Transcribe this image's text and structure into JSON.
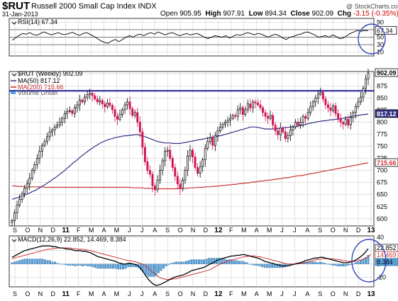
{
  "header": {
    "ticker": "$RUT",
    "full_name": "Russell 2000 Small Cap Index  INDX",
    "date": "31-Jan-2013",
    "open_label": "Open",
    "open": "905.95",
    "high_label": "High",
    "high": "907.91",
    "low_label": "Low",
    "low": "894.34",
    "close_label": "Close",
    "close": "902.09",
    "chg_label": "Chg",
    "chg": "-3.15 (-0.35%)",
    "brand": "@ StockCharts.com"
  },
  "colors": {
    "up": "#d01050",
    "down": "#000000",
    "ma50": "#333388",
    "ma200": "#cc3333",
    "resistance": "#1c1c9c",
    "histogram": "#5aa0d8",
    "macd": "#000000",
    "signal": "#cc3333",
    "ellipse": "#3344bb",
    "grid": "#cfcfcf"
  },
  "chart_data": [
    {
      "type": "line",
      "panel": "RSI",
      "legend": "RSI(14) 67.34",
      "last_label": "67.34",
      "ylim": [
        0,
        100
      ],
      "y_ticks": [
        10,
        30,
        50,
        70,
        90
      ],
      "reference_lines": [
        30,
        50,
        70
      ],
      "values": [
        42,
        48,
        55,
        60,
        58,
        62,
        57,
        55,
        60,
        64,
        60,
        56,
        59,
        62,
        58,
        57,
        60,
        63,
        58,
        55,
        60,
        62,
        57,
        52,
        46,
        40,
        36,
        34,
        40,
        44,
        38,
        44,
        50,
        54,
        50,
        56,
        58,
        54,
        59,
        62,
        58,
        64,
        60,
        56,
        60,
        62,
        58,
        54,
        57,
        60,
        56,
        58,
        60,
        55,
        50,
        46,
        50,
        54,
        52,
        50,
        54,
        48,
        52,
        57,
        55,
        58,
        62,
        60,
        56,
        60,
        58,
        54,
        50,
        55,
        58,
        54,
        48,
        44,
        50,
        52,
        56,
        58,
        62,
        64,
        60,
        56,
        50,
        52,
        54,
        50,
        56,
        52,
        46,
        48,
        54,
        60,
        64,
        68,
        66,
        68,
        67.34
      ]
    },
    {
      "type": "candlestick",
      "panel": "Price",
      "legend": [
        "$RUT (Weekly) 902.09",
        "MA(50) 817.12",
        "MA(200) 715.66",
        "Volume Undef"
      ],
      "ylim": [
        585,
        905
      ],
      "y_ticks": [
        600,
        625,
        650,
        675,
        700,
        725,
        750,
        775,
        800,
        825,
        850,
        875,
        900
      ],
      "last_labels": {
        "close": "902.09",
        "ma50": "817.12",
        "ma200": "715.66"
      },
      "resistance_level": 865,
      "close": [
        596,
        612,
        628,
        640,
        652,
        663,
        672,
        684,
        700,
        712,
        725,
        740,
        752,
        760,
        770,
        780,
        784,
        790,
        794,
        800,
        808,
        818,
        822,
        824,
        818,
        830,
        836,
        846,
        842,
        852,
        857,
        860,
        855,
        848,
        842,
        845,
        838,
        832,
        840,
        835,
        826,
        812,
        806,
        816,
        826,
        836,
        842,
        828,
        814,
        820,
        800,
        780,
        748,
        718,
        700,
        692,
        668,
        660,
        680,
        700,
        720,
        740,
        742,
        725,
        706,
        688,
        672,
        662,
        680,
        700,
        730,
        742,
        728,
        706,
        694,
        708,
        722,
        746,
        760,
        768,
        752,
        772,
        782,
        790,
        796,
        800,
        804,
        808,
        814,
        812,
        826,
        830,
        816,
        826,
        838,
        830,
        842,
        840,
        836,
        830,
        820,
        812,
        808,
        814,
        794,
        782,
        774,
        788,
        780,
        766,
        772,
        784,
        790,
        800,
        794,
        800,
        812,
        808,
        820,
        832,
        842,
        850,
        858,
        862,
        848,
        836,
        830,
        824,
        834,
        818,
        808,
        800,
        796,
        806,
        794,
        810,
        820,
        832,
        842,
        852,
        870,
        890,
        902.09
      ],
      "ma50": [
        640,
        642,
        643,
        645,
        647,
        649,
        651,
        653,
        656,
        658,
        661,
        664,
        667,
        670,
        674,
        677,
        681,
        684,
        688,
        692,
        696,
        700,
        705,
        709,
        714,
        718,
        722,
        727,
        731,
        735,
        739,
        743,
        746,
        750,
        753,
        756,
        759,
        761,
        763,
        765,
        766,
        768,
        769,
        770,
        771,
        772,
        772,
        773,
        773,
        774,
        774,
        773,
        772,
        770,
        768,
        766,
        764,
        762,
        760,
        759,
        758,
        757,
        757,
        757,
        756,
        756,
        756,
        756,
        757,
        758,
        759,
        760,
        761,
        762,
        763,
        764,
        765,
        766,
        767,
        768,
        769,
        770,
        771,
        772,
        773,
        775,
        776,
        778,
        779,
        781,
        782,
        784,
        785,
        787,
        788,
        790,
        790,
        790,
        789,
        788,
        787,
        786,
        786,
        786,
        786,
        786,
        787,
        787,
        788,
        789,
        789,
        790,
        791,
        791,
        792,
        793,
        794,
        795,
        797,
        798,
        799,
        800,
        801,
        802,
        803,
        803,
        804,
        805,
        805,
        806,
        806,
        807,
        808,
        809,
        810,
        811,
        812,
        813,
        814,
        815,
        816,
        816,
        817.12
      ],
      "ma200": [
        668,
        668,
        667,
        667,
        667,
        666,
        666,
        666,
        666,
        666,
        666,
        666,
        666,
        665,
        665,
        665,
        665,
        665,
        665,
        665,
        665,
        665,
        665,
        665,
        665,
        665,
        665,
        665,
        665,
        665,
        665,
        665,
        665,
        665,
        665,
        665,
        665,
        665,
        665,
        665,
        665,
        665,
        665,
        665,
        665,
        665,
        665,
        665,
        664,
        664,
        664,
        664,
        664,
        663,
        663,
        663,
        662,
        662,
        662,
        662,
        662,
        662,
        662,
        662,
        662,
        662,
        662,
        663,
        663,
        663,
        663,
        664,
        664,
        664,
        665,
        665,
        665,
        666,
        666,
        666,
        667,
        667,
        668,
        668,
        669,
        669,
        670,
        670,
        671,
        671,
        672,
        673,
        673,
        674,
        674,
        675,
        676,
        676,
        677,
        678,
        678,
        679,
        680,
        680,
        681,
        682,
        682,
        683,
        684,
        685,
        685,
        686,
        687,
        688,
        689,
        689,
        690,
        691,
        692,
        693,
        694,
        695,
        696,
        697,
        698,
        699,
        700,
        701,
        702,
        703,
        704,
        705,
        706,
        707,
        708,
        709,
        710,
        711,
        712,
        713,
        714,
        715,
        715.66
      ]
    },
    {
      "type": "line",
      "panel": "MACD",
      "legend": "MACD(12,26,9) 22.852, 14.469, 8.384",
      "last_labels": {
        "macd": "22.852",
        "signal": "14.469",
        "hist": "8.384"
      },
      "ylim": [
        -34,
        42
      ],
      "y_ticks": [
        -20,
        0,
        20,
        40
      ],
      "macd": [
        10,
        12,
        14,
        16,
        18,
        20,
        21,
        22,
        23,
        24,
        25,
        26,
        27,
        27,
        27,
        27,
        26,
        26,
        25,
        24,
        24,
        23,
        22,
        22,
        21,
        20,
        20,
        20,
        19,
        19,
        18,
        17,
        15,
        13,
        11,
        10,
        9,
        8,
        7,
        6,
        5,
        4,
        2,
        1,
        0,
        0,
        1,
        1,
        0,
        -1,
        -3,
        -7,
        -12,
        -18,
        -23,
        -27,
        -30,
        -32,
        -31,
        -30,
        -28,
        -26,
        -24,
        -22,
        -20,
        -19,
        -18,
        -17,
        -16,
        -14,
        -12,
        -10,
        -9,
        -8,
        -7,
        -6,
        -5,
        -3,
        -1,
        1,
        3,
        5,
        7,
        8,
        9,
        10,
        11,
        12,
        12,
        13,
        13,
        14,
        14,
        13,
        12,
        11,
        10,
        9,
        8,
        6,
        4,
        3,
        2,
        1,
        0,
        -1,
        -2,
        -3,
        -3,
        -3,
        -2,
        -1,
        0,
        1,
        2,
        3,
        5,
        6,
        7,
        8,
        9,
        9,
        10,
        10,
        9,
        8,
        7,
        6,
        5,
        4,
        3,
        2,
        2,
        2,
        3,
        4,
        6,
        8,
        11,
        14,
        18,
        22.852
      ],
      "signal": [
        8,
        9,
        10,
        11,
        12,
        13,
        14,
        15,
        16,
        17,
        18,
        19,
        20,
        21,
        22,
        22,
        23,
        23,
        24,
        24,
        24,
        24,
        24,
        24,
        23,
        23,
        22,
        22,
        22,
        21,
        21,
        20,
        19,
        18,
        17,
        16,
        15,
        14,
        13,
        12,
        11,
        10,
        9,
        8,
        7,
        6,
        5,
        5,
        4,
        3,
        2,
        1,
        -1,
        -3,
        -6,
        -10,
        -13,
        -16,
        -19,
        -21,
        -22,
        -23,
        -23,
        -23,
        -22,
        -22,
        -21,
        -20,
        -19,
        -18,
        -17,
        -16,
        -15,
        -14,
        -13,
        -12,
        -11,
        -10,
        -9,
        -7,
        -5,
        -3,
        -1,
        1,
        2,
        4,
        5,
        6,
        7,
        8,
        9,
        10,
        11,
        11,
        12,
        12,
        12,
        11,
        11,
        10,
        9,
        8,
        7,
        6,
        5,
        4,
        3,
        2,
        1,
        0,
        0,
        0,
        0,
        0,
        1,
        1,
        2,
        3,
        4,
        5,
        6,
        7,
        7,
        8,
        8,
        8,
        8,
        8,
        7,
        7,
        6,
        5,
        5,
        4,
        4,
        4,
        4,
        5,
        6,
        7,
        9,
        11,
        14.469
      ]
    }
  ],
  "x_axis": {
    "labels": [
      "S",
      "O",
      "N",
      "D",
      "11",
      "F",
      "M",
      "A",
      "M",
      "J",
      "J",
      "A",
      "S",
      "O",
      "N",
      "D",
      "12",
      "F",
      "M",
      "A",
      "M",
      "J",
      "J",
      "A",
      "S",
      "O",
      "N",
      "D",
      "13"
    ],
    "bold_labels": [
      "11",
      "12",
      "13"
    ]
  }
}
